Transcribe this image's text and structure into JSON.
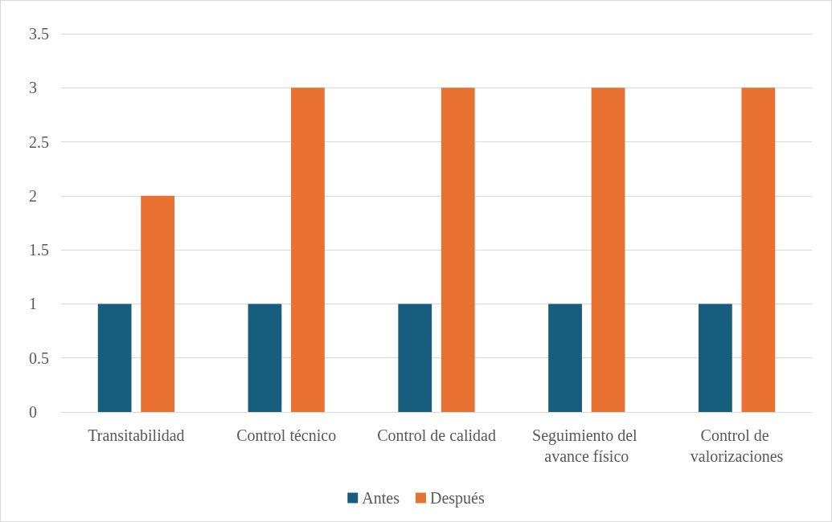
{
  "chart_data": {
    "type": "bar",
    "categories": [
      "Transitabilidad",
      "Control técnico",
      "Control de calidad",
      "Seguimiento del avance físico",
      "Control de valorizaciones"
    ],
    "series": [
      {
        "name": "Antes",
        "color": "#175e7e",
        "values": [
          1,
          1,
          1,
          1,
          1
        ]
      },
      {
        "name": "Después",
        "color": "#e97132",
        "values": [
          2,
          3,
          3,
          3,
          3
        ]
      }
    ],
    "ylim": [
      0,
      3.5
    ],
    "yticks": [
      0,
      0.5,
      1,
      1.5,
      2,
      2.5,
      3,
      3.5
    ],
    "grid": "y",
    "legend": "bottom"
  }
}
